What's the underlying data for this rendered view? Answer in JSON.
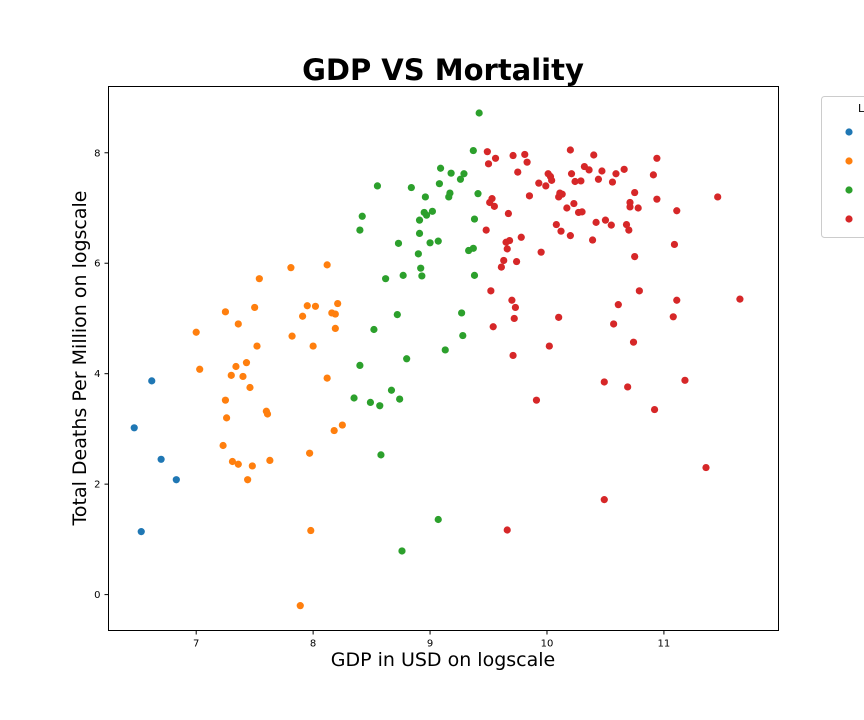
{
  "chart_data": {
    "type": "scatter",
    "title": "GDP VS Mortality",
    "xlabel": "GDP in USD on logscale",
    "ylabel": "Total Deaths Per Million on logscale",
    "xlim": [
      6.25,
      11.98
    ],
    "ylim": [
      -0.65,
      9.2
    ],
    "x_ticks": [
      7,
      8,
      9,
      10,
      11
    ],
    "y_ticks": [
      0,
      2,
      4,
      6,
      8
    ],
    "grid": false,
    "legend": {
      "title": "L",
      "placement": "right, outside plot (partially cut off)",
      "entries": [
        "",
        "",
        "",
        ""
      ]
    },
    "series": [
      {
        "color": "#1f77b4",
        "points": [
          [
            6.47,
            3.02
          ],
          [
            6.53,
            1.14
          ],
          [
            6.62,
            3.87
          ],
          [
            6.7,
            2.45
          ],
          [
            6.83,
            2.08
          ]
        ]
      },
      {
        "color": "#ff7f0e",
        "points": [
          [
            7.0,
            4.75
          ],
          [
            7.03,
            4.08
          ],
          [
            7.23,
            2.7
          ],
          [
            7.25,
            5.12
          ],
          [
            7.25,
            3.52
          ],
          [
            7.26,
            3.2
          ],
          [
            7.3,
            3.97
          ],
          [
            7.31,
            2.41
          ],
          [
            7.34,
            4.13
          ],
          [
            7.36,
            2.36
          ],
          [
            7.36,
            4.9
          ],
          [
            7.4,
            3.95
          ],
          [
            7.43,
            4.2
          ],
          [
            7.44,
            2.08
          ],
          [
            7.46,
            3.75
          ],
          [
            7.48,
            2.33
          ],
          [
            7.5,
            5.2
          ],
          [
            7.52,
            4.5
          ],
          [
            7.54,
            5.72
          ],
          [
            7.6,
            3.32
          ],
          [
            7.61,
            3.27
          ],
          [
            7.63,
            2.43
          ],
          [
            7.81,
            5.92
          ],
          [
            7.82,
            4.68
          ],
          [
            7.89,
            -0.2
          ],
          [
            7.91,
            5.04
          ],
          [
            7.95,
            5.23
          ],
          [
            7.97,
            2.56
          ],
          [
            7.98,
            1.16
          ],
          [
            8.0,
            4.5
          ],
          [
            8.02,
            5.22
          ],
          [
            8.12,
            5.97
          ],
          [
            8.12,
            3.92
          ],
          [
            8.16,
            5.1
          ],
          [
            8.18,
            2.97
          ],
          [
            8.19,
            4.82
          ],
          [
            8.19,
            5.08
          ],
          [
            8.21,
            5.27
          ],
          [
            8.25,
            3.07
          ]
        ]
      },
      {
        "color": "#2ca02c",
        "points": [
          [
            8.35,
            3.56
          ],
          [
            8.4,
            4.15
          ],
          [
            8.4,
            6.6
          ],
          [
            8.42,
            6.85
          ],
          [
            8.49,
            3.48
          ],
          [
            8.52,
            4.8
          ],
          [
            8.55,
            7.4
          ],
          [
            8.57,
            3.42
          ],
          [
            8.58,
            2.53
          ],
          [
            8.62,
            5.72
          ],
          [
            8.67,
            3.7
          ],
          [
            8.72,
            5.07
          ],
          [
            8.73,
            6.36
          ],
          [
            8.74,
            3.54
          ],
          [
            8.76,
            0.79
          ],
          [
            8.77,
            5.78
          ],
          [
            8.8,
            4.27
          ],
          [
            8.84,
            7.37
          ],
          [
            8.9,
            6.17
          ],
          [
            8.91,
            6.54
          ],
          [
            8.91,
            6.78
          ],
          [
            8.92,
            5.91
          ],
          [
            8.93,
            5.77
          ],
          [
            8.95,
            6.92
          ],
          [
            8.96,
            7.2
          ],
          [
            8.97,
            6.87
          ],
          [
            9.0,
            6.37
          ],
          [
            9.02,
            6.94
          ],
          [
            9.07,
            6.4
          ],
          [
            9.07,
            1.36
          ],
          [
            9.08,
            7.44
          ],
          [
            9.09,
            7.72
          ],
          [
            9.13,
            4.43
          ],
          [
            9.16,
            7.2
          ],
          [
            9.17,
            7.27
          ],
          [
            9.18,
            7.63
          ],
          [
            9.26,
            7.52
          ],
          [
            9.27,
            5.1
          ],
          [
            9.28,
            4.69
          ],
          [
            9.29,
            7.62
          ],
          [
            9.33,
            6.23
          ],
          [
            9.37,
            6.27
          ],
          [
            9.38,
            5.78
          ],
          [
            9.37,
            8.04
          ],
          [
            9.38,
            6.8
          ],
          [
            9.41,
            7.26
          ],
          [
            9.42,
            8.72
          ]
        ]
      },
      {
        "color": "#d62728",
        "points": [
          [
            9.48,
            6.6
          ],
          [
            9.49,
            8.02
          ],
          [
            9.5,
            7.8
          ],
          [
            9.51,
            7.1
          ],
          [
            9.52,
            5.5
          ],
          [
            9.53,
            7.17
          ],
          [
            9.54,
            4.85
          ],
          [
            9.56,
            7.9
          ],
          [
            9.55,
            7.03
          ],
          [
            9.61,
            5.93
          ],
          [
            9.63,
            6.05
          ],
          [
            9.65,
            6.38
          ],
          [
            9.66,
            6.26
          ],
          [
            9.66,
            1.17
          ],
          [
            9.67,
            6.9
          ],
          [
            9.68,
            6.41
          ],
          [
            9.7,
            5.33
          ],
          [
            9.71,
            7.95
          ],
          [
            9.71,
            4.33
          ],
          [
            9.72,
            5.0
          ],
          [
            9.73,
            5.2
          ],
          [
            9.74,
            6.03
          ],
          [
            9.75,
            7.65
          ],
          [
            9.78,
            6.47
          ],
          [
            9.81,
            7.97
          ],
          [
            9.83,
            7.83
          ],
          [
            9.85,
            7.22
          ],
          [
            9.91,
            3.52
          ],
          [
            9.93,
            7.45
          ],
          [
            9.95,
            6.2
          ],
          [
            9.99,
            7.4
          ],
          [
            10.01,
            7.62
          ],
          [
            10.02,
            4.5
          ],
          [
            10.03,
            7.57
          ],
          [
            10.04,
            7.5
          ],
          [
            10.08,
            6.7
          ],
          [
            10.1,
            7.2
          ],
          [
            10.1,
            5.02
          ],
          [
            10.11,
            7.27
          ],
          [
            10.12,
            6.58
          ],
          [
            10.13,
            7.25
          ],
          [
            10.17,
            7.0
          ],
          [
            10.2,
            8.05
          ],
          [
            10.2,
            6.5
          ],
          [
            10.21,
            7.62
          ],
          [
            10.23,
            7.08
          ],
          [
            10.24,
            7.48
          ],
          [
            10.27,
            6.92
          ],
          [
            10.29,
            7.49
          ],
          [
            10.3,
            6.93
          ],
          [
            10.32,
            7.75
          ],
          [
            10.36,
            7.69
          ],
          [
            10.39,
            6.42
          ],
          [
            10.4,
            7.96
          ],
          [
            10.42,
            6.74
          ],
          [
            10.44,
            7.52
          ],
          [
            10.47,
            7.67
          ],
          [
            10.49,
            3.85
          ],
          [
            10.5,
            6.78
          ],
          [
            10.49,
            1.72
          ],
          [
            10.55,
            6.69
          ],
          [
            10.56,
            7.47
          ],
          [
            10.57,
            4.9
          ],
          [
            10.59,
            7.62
          ],
          [
            10.61,
            5.25
          ],
          [
            10.66,
            7.7
          ],
          [
            10.68,
            6.7
          ],
          [
            10.69,
            3.76
          ],
          [
            10.7,
            6.6
          ],
          [
            10.71,
            7.1
          ],
          [
            10.71,
            7.02
          ],
          [
            10.74,
            4.57
          ],
          [
            10.75,
            7.28
          ],
          [
            10.75,
            6.12
          ],
          [
            10.78,
            7.0
          ],
          [
            10.79,
            5.5
          ],
          [
            10.91,
            7.6
          ],
          [
            10.92,
            3.35
          ],
          [
            10.94,
            7.9
          ],
          [
            10.94,
            7.16
          ],
          [
            11.08,
            5.03
          ],
          [
            11.09,
            6.34
          ],
          [
            11.11,
            5.33
          ],
          [
            11.11,
            6.95
          ],
          [
            11.18,
            3.88
          ],
          [
            11.36,
            2.3
          ],
          [
            11.46,
            7.2
          ],
          [
            11.65,
            5.35
          ]
        ]
      }
    ]
  }
}
